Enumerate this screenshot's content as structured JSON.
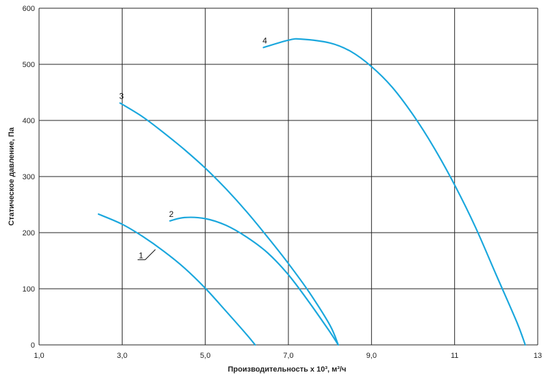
{
  "chart_data": {
    "type": "line",
    "xlabel": "Производительность x 10³, м³/ч",
    "ylabel": "Статическое давление, Па",
    "xlim": [
      1,
      13
    ],
    "ylim": [
      0,
      600
    ],
    "x_ticks": [
      1,
      3,
      5,
      7,
      9,
      11,
      13
    ],
    "x_tick_labels": [
      "1,0",
      "3,0",
      "5,0",
      "7,0",
      "9,0",
      "11",
      "13"
    ],
    "y_ticks": [
      0,
      100,
      200,
      300,
      400,
      500,
      600
    ],
    "y_tick_labels": [
      "0",
      "100",
      "200",
      "300",
      "400",
      "500",
      "600"
    ],
    "grid": true,
    "line_color": "#1aa7dd",
    "series": [
      {
        "name": "1",
        "x": [
          2.43,
          3.0,
          3.5,
          4.0,
          4.5,
          5.0,
          5.5,
          6.0,
          6.2
        ],
        "y": [
          233,
          215,
          193,
          167,
          137,
          101,
          60,
          18,
          0
        ]
      },
      {
        "name": "2",
        "x": [
          4.15,
          4.5,
          5.0,
          5.5,
          6.0,
          6.5,
          7.0,
          7.5,
          8.0,
          8.2
        ],
        "y": [
          221,
          227,
          225,
          213,
          192,
          164,
          125,
          76,
          23,
          0
        ]
      },
      {
        "name": "3",
        "x": [
          2.95,
          3.5,
          4.0,
          4.5,
          5.0,
          5.5,
          6.0,
          6.5,
          7.0,
          7.5,
          8.0,
          8.2
        ],
        "y": [
          431,
          406,
          378,
          348,
          315,
          278,
          237,
          192,
          145,
          94,
          35,
          0
        ]
      },
      {
        "name": "4",
        "x": [
          6.4,
          7.0,
          7.3,
          8.0,
          8.5,
          9.0,
          9.5,
          10.0,
          10.5,
          11.0,
          11.5,
          12.0,
          12.5,
          12.7
        ],
        "y": [
          530,
          543,
          545,
          538,
          523,
          496,
          459,
          410,
          352,
          285,
          210,
          125,
          40,
          0
        ]
      }
    ]
  }
}
